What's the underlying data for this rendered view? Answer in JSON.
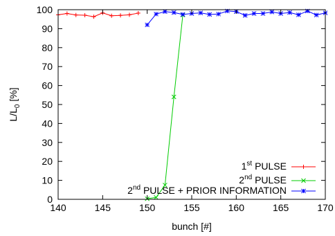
{
  "chart_data": {
    "type": "line",
    "xlabel": "bunch [#]",
    "ylabel": "L/L",
    "ylabel_sub": "0",
    "ylabel_unit": " [%]",
    "xlim": [
      140,
      170
    ],
    "ylim": [
      0,
      100
    ],
    "xticks": [
      140,
      145,
      150,
      155,
      160,
      165,
      170
    ],
    "yticks": [
      0,
      10,
      20,
      30,
      40,
      50,
      60,
      70,
      80,
      90,
      100
    ],
    "grid": false,
    "legend_position": "bottom-right",
    "series": [
      {
        "name_parts": [
          "1",
          "st",
          " PULSE"
        ],
        "color": "#ff0000",
        "marker": "plus",
        "x": [
          140,
          141,
          142,
          143,
          144,
          145,
          146,
          147,
          148,
          149
        ],
        "y": [
          97.3,
          98.0,
          97.2,
          97.1,
          96.3,
          98.3,
          96.8,
          97.0,
          97.3,
          98.2
        ]
      },
      {
        "name_parts": [
          "2",
          "nd",
          " PULSE"
        ],
        "color": "#00cc00",
        "marker": "cross",
        "x": [
          150,
          151,
          152,
          153,
          154
        ],
        "y": [
          0.3,
          1.0,
          7.5,
          54.0,
          97.2
        ]
      },
      {
        "name_parts": [
          "2",
          "nd",
          " PULSE + PRIOR INFORMATION"
        ],
        "color": "#0000ff",
        "marker": "star",
        "x": [
          150,
          151,
          152,
          153,
          154,
          155,
          156,
          157,
          158,
          159,
          160,
          161,
          162,
          163,
          164,
          165,
          166,
          167,
          168,
          169,
          170
        ],
        "y": [
          92.0,
          97.7,
          99.0,
          98.5,
          97.5,
          98.0,
          98.3,
          97.5,
          97.7,
          99.3,
          99.0,
          97.0,
          98.0,
          98.0,
          98.8,
          98.0,
          98.5,
          97.3,
          99.3,
          97.2,
          98.3
        ]
      }
    ]
  }
}
